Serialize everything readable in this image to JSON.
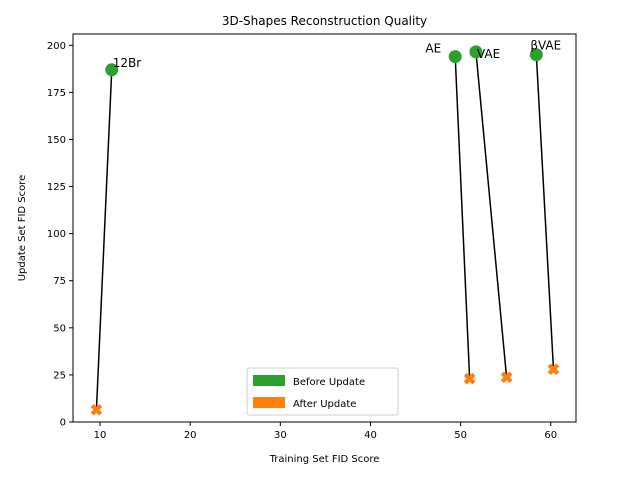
{
  "chart_data": {
    "type": "scatter",
    "title": "3D-Shapes Reconstruction Quality",
    "xlabel": "Training Set FID Score",
    "ylabel": "Update Set FID Score",
    "xlim": [
      7,
      62.8
    ],
    "ylim": [
      0,
      206
    ],
    "xticks": [
      10,
      20,
      30,
      40,
      50,
      60
    ],
    "yticks": [
      0,
      25,
      50,
      75,
      100,
      125,
      150,
      175,
      200
    ],
    "grid": false,
    "legend_position": "bottom-center",
    "series": [
      {
        "name": "Before Update",
        "color": "#2ca02c",
        "marker": "circle"
      },
      {
        "name": "After Update",
        "color": "#ff7f0e",
        "marker": "x"
      }
    ],
    "models": [
      {
        "label": "12Br",
        "before": [
          11.3,
          187
        ],
        "after": [
          9.6,
          6.5
        ]
      },
      {
        "label": "AE",
        "before": [
          49.4,
          194
        ],
        "after": [
          51.0,
          23
        ]
      },
      {
        "label": "VAE",
        "before": [
          51.7,
          196.5
        ],
        "after": [
          55.1,
          23.7
        ]
      },
      {
        "label": "βVAE",
        "before": [
          58.4,
          195
        ],
        "after": [
          60.3,
          28
        ]
      }
    ],
    "colors": {
      "connector": "#000000",
      "axis": "#000000"
    }
  }
}
